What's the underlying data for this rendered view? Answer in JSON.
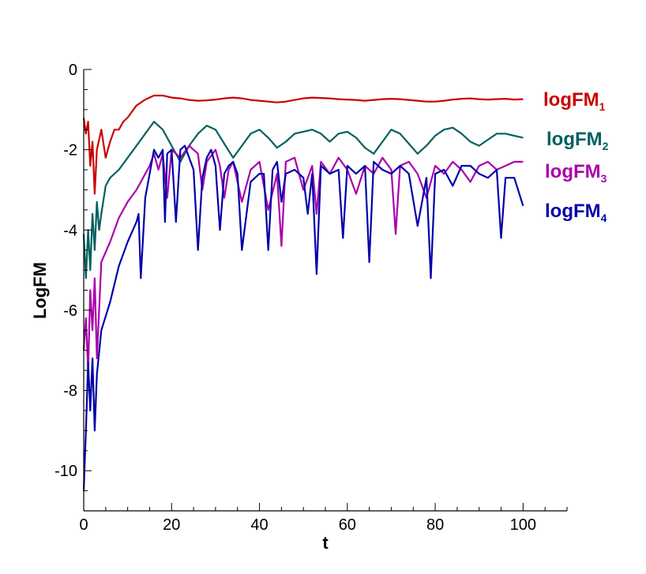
{
  "chart_data": {
    "type": "line",
    "title": "",
    "xlabel": "t",
    "ylabel": "LogFM",
    "xlim": [
      0,
      110
    ],
    "ylim": [
      -11,
      0
    ],
    "xticks": [
      "0",
      "20",
      "40",
      "60",
      "80",
      "100"
    ],
    "yticks": [
      "0",
      "-2",
      "-4",
      "-6",
      "-8",
      "-10"
    ],
    "grid": false,
    "legend_position": "right",
    "series": [
      {
        "name": "logFM1",
        "label_main": "logFM",
        "label_sub": "1",
        "color": "#cc0000",
        "x": [
          0,
          0.5,
          1,
          1.5,
          2,
          2.5,
          3,
          4,
          5,
          6,
          7,
          8,
          9,
          10,
          12,
          14,
          16,
          18,
          20,
          22,
          24,
          26,
          28,
          30,
          32,
          34,
          36,
          38,
          40,
          42,
          44,
          46,
          48,
          50,
          52,
          54,
          56,
          58,
          60,
          62,
          64,
          66,
          68,
          70,
          72,
          74,
          76,
          78,
          80,
          82,
          84,
          86,
          88,
          90,
          92,
          94,
          96,
          98,
          100
        ],
        "y": [
          -1.2,
          -1.6,
          -1.3,
          -2.4,
          -1.8,
          -3.1,
          -2.0,
          -1.5,
          -2.2,
          -1.8,
          -1.5,
          -1.5,
          -1.3,
          -1.2,
          -0.9,
          -0.75,
          -0.65,
          -0.65,
          -0.7,
          -0.72,
          -0.76,
          -0.78,
          -0.77,
          -0.75,
          -0.72,
          -0.7,
          -0.72,
          -0.76,
          -0.78,
          -0.8,
          -0.82,
          -0.8,
          -0.76,
          -0.72,
          -0.7,
          -0.71,
          -0.72,
          -0.74,
          -0.75,
          -0.76,
          -0.78,
          -0.76,
          -0.74,
          -0.73,
          -0.74,
          -0.76,
          -0.78,
          -0.8,
          -0.8,
          -0.78,
          -0.75,
          -0.73,
          -0.72,
          -0.74,
          -0.75,
          -0.74,
          -0.73,
          -0.75,
          -0.74
        ]
      },
      {
        "name": "logFM2",
        "label_main": "logFM",
        "label_sub": "2",
        "color": "#006060",
        "x": [
          0,
          0.5,
          1,
          1.5,
          2,
          2.5,
          3,
          3.5,
          4,
          5,
          6,
          8,
          10,
          12,
          14,
          16,
          18,
          20,
          22,
          24,
          26,
          28,
          30,
          32,
          34,
          36,
          38,
          40,
          42,
          44,
          46,
          48,
          50,
          52,
          54,
          56,
          58,
          60,
          62,
          64,
          66,
          68,
          70,
          72,
          74,
          76,
          78,
          80,
          82,
          84,
          86,
          88,
          90,
          92,
          94,
          96,
          98,
          100
        ],
        "y": [
          -4.1,
          -5.2,
          -4.0,
          -5.0,
          -3.6,
          -4.5,
          -3.3,
          -4.0,
          -3.6,
          -2.9,
          -2.7,
          -2.5,
          -2.2,
          -1.9,
          -1.6,
          -1.3,
          -1.5,
          -1.9,
          -2.3,
          -1.9,
          -1.6,
          -1.4,
          -1.5,
          -1.85,
          -2.2,
          -1.9,
          -1.6,
          -1.5,
          -1.7,
          -1.95,
          -1.8,
          -1.6,
          -1.55,
          -1.5,
          -1.6,
          -1.8,
          -1.6,
          -1.55,
          -1.7,
          -1.95,
          -2.1,
          -1.8,
          -1.5,
          -1.6,
          -1.85,
          -2.1,
          -1.9,
          -1.65,
          -1.5,
          -1.45,
          -1.6,
          -1.8,
          -1.9,
          -1.75,
          -1.6,
          -1.6,
          -1.65,
          -1.7
        ]
      },
      {
        "name": "logFM3",
        "label_main": "logFM",
        "label_sub": "3",
        "color": "#aa00aa",
        "x": [
          0,
          0.5,
          1,
          1.5,
          2,
          2.5,
          3,
          4,
          6,
          8,
          10,
          12,
          14,
          15,
          16,
          17,
          18,
          19,
          20,
          22,
          24,
          26,
          27,
          28,
          30,
          31,
          32,
          33,
          34,
          36,
          38,
          40,
          42,
          44,
          45,
          46,
          48,
          50,
          52,
          53,
          54,
          56,
          58,
          60,
          62,
          64,
          66,
          68,
          70,
          71,
          72,
          74,
          76,
          78,
          80,
          82,
          84,
          86,
          88,
          90,
          92,
          94,
          96,
          98,
          100
        ],
        "y": [
          -7.0,
          -6.2,
          -7.5,
          -5.5,
          -6.5,
          -5.2,
          -7.2,
          -4.8,
          -4.3,
          -3.7,
          -3.3,
          -3.0,
          -2.6,
          -2.4,
          -2.1,
          -2.5,
          -2.1,
          -3.2,
          -2.0,
          -2.2,
          -1.9,
          -2.1,
          -3.0,
          -2.3,
          -2.0,
          -2.4,
          -3.2,
          -2.5,
          -2.3,
          -3.3,
          -2.5,
          -2.3,
          -3.5,
          -2.6,
          -4.4,
          -2.3,
          -2.2,
          -3.0,
          -2.4,
          -3.6,
          -2.3,
          -2.6,
          -2.2,
          -2.5,
          -3.1,
          -2.4,
          -2.6,
          -2.2,
          -2.5,
          -4.1,
          -2.4,
          -2.3,
          -2.6,
          -3.2,
          -2.4,
          -2.6,
          -2.3,
          -2.5,
          -2.8,
          -2.4,
          -2.3,
          -2.5,
          -2.4,
          -2.3,
          -2.3
        ]
      },
      {
        "name": "logFM4",
        "label_main": "logFM",
        "label_sub": "4",
        "color": "#0000aa",
        "x": [
          0,
          0.5,
          1,
          1.5,
          2,
          2.5,
          3,
          4,
          6,
          8,
          10,
          12,
          12.5,
          13,
          14,
          15,
          16,
          17,
          18,
          18.5,
          19,
          20,
          21,
          22,
          23,
          24,
          25,
          26,
          27,
          28,
          29,
          30,
          31,
          32,
          33,
          34,
          35,
          36,
          38,
          40,
          41,
          42,
          43,
          44,
          45,
          46,
          48,
          50,
          51,
          52,
          53,
          54,
          56,
          58,
          59,
          60,
          62,
          64,
          65,
          66,
          68,
          70,
          72,
          74,
          76,
          78,
          79,
          80,
          82,
          84,
          86,
          88,
          90,
          92,
          94,
          95,
          96,
          98,
          100
        ],
        "y": [
          -10.5,
          -9.0,
          -7.3,
          -8.5,
          -7.2,
          -9.0,
          -7.6,
          -6.5,
          -5.8,
          -4.9,
          -4.3,
          -3.8,
          -3.6,
          -5.2,
          -3.2,
          -2.6,
          -2.0,
          -2.2,
          -2.0,
          -3.8,
          -2.1,
          -2.0,
          -3.8,
          -2.0,
          -1.9,
          -2.2,
          -2.5,
          -4.5,
          -2.7,
          -2.2,
          -2.0,
          -2.4,
          -4.0,
          -2.6,
          -2.4,
          -2.3,
          -2.6,
          -4.5,
          -2.8,
          -2.6,
          -2.6,
          -4.5,
          -2.5,
          -2.3,
          -3.3,
          -2.6,
          -2.5,
          -2.7,
          -3.6,
          -2.6,
          -5.1,
          -2.4,
          -2.6,
          -2.5,
          -4.2,
          -2.4,
          -2.6,
          -2.4,
          -4.8,
          -2.3,
          -2.5,
          -2.6,
          -2.4,
          -2.6,
          -3.9,
          -2.7,
          -5.2,
          -2.6,
          -2.5,
          -2.9,
          -2.4,
          -2.4,
          -2.6,
          -2.7,
          -2.5,
          -4.2,
          -2.7,
          -2.7,
          -3.4
        ]
      }
    ]
  }
}
